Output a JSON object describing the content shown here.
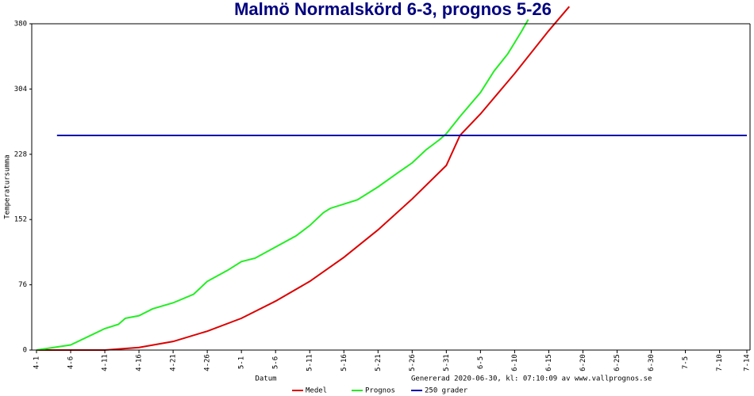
{
  "chart_data": {
    "type": "line",
    "title": "Malmö Normalskörd 6-3, prognos 5-26",
    "x_label": "Datum",
    "y_label": "Temperatursumma",
    "annotation": "Genererad 2020-06-30, kl: 07:10:09 av www.vallprognos.se",
    "xlim": [
      0,
      104
    ],
    "xticks": [
      {
        "value": 0,
        "label": "4-1"
      },
      {
        "value": 5,
        "label": "4-6"
      },
      {
        "value": 10,
        "label": "4-11"
      },
      {
        "value": 15,
        "label": "4-16"
      },
      {
        "value": 20,
        "label": "4-21"
      },
      {
        "value": 25,
        "label": "4-26"
      },
      {
        "value": 30,
        "label": "5-1"
      },
      {
        "value": 35,
        "label": "5-6"
      },
      {
        "value": 40,
        "label": "5-11"
      },
      {
        "value": 45,
        "label": "5-16"
      },
      {
        "value": 50,
        "label": "5-21"
      },
      {
        "value": 55,
        "label": "5-26"
      },
      {
        "value": 60,
        "label": "5-31"
      },
      {
        "value": 65,
        "label": "6-5"
      },
      {
        "value": 70,
        "label": "6-10"
      },
      {
        "value": 75,
        "label": "6-15"
      },
      {
        "value": 80,
        "label": "6-20"
      },
      {
        "value": 85,
        "label": "6-25"
      },
      {
        "value": 90,
        "label": "6-30"
      },
      {
        "value": 95,
        "label": "7-5"
      },
      {
        "value": 100,
        "label": "7-10"
      },
      {
        "value": 104,
        "label": "7-14"
      }
    ],
    "ylim": [
      0,
      380
    ],
    "yticks": [
      0,
      76,
      152,
      228,
      304,
      380
    ],
    "series": [
      {
        "name": "Medel",
        "color": "#dd0000",
        "x": [
          0,
          10,
          15,
          20,
          25,
          30,
          35,
          40,
          45,
          50,
          55,
          60,
          62,
          65,
          70,
          75,
          78
        ],
        "values": [
          0,
          0,
          3,
          10,
          22,
          37,
          57,
          80,
          108,
          140,
          176,
          215,
          250,
          275,
          322,
          372,
          400
        ]
      },
      {
        "name": "Prognos",
        "color": "#22ee22",
        "x": [
          0,
          5,
          10,
          12,
          13,
          15,
          17,
          20,
          23,
          25,
          28,
          30,
          32,
          35,
          38,
          40,
          42,
          43,
          45,
          47,
          50,
          53,
          55,
          57,
          59,
          60,
          62,
          65,
          67,
          69,
          70,
          71,
          72
        ],
        "values": [
          0,
          6,
          25,
          30,
          37,
          40,
          48,
          55,
          65,
          80,
          93,
          103,
          107,
          120,
          133,
          145,
          160,
          165,
          170,
          175,
          190,
          207,
          218,
          233,
          245,
          252,
          272,
          300,
          325,
          345,
          358,
          371,
          385
        ]
      },
      {
        "name": "250 grader",
        "color": "#0000aa",
        "x": [
          3,
          104
        ],
        "values": [
          250,
          250
        ]
      }
    ]
  }
}
